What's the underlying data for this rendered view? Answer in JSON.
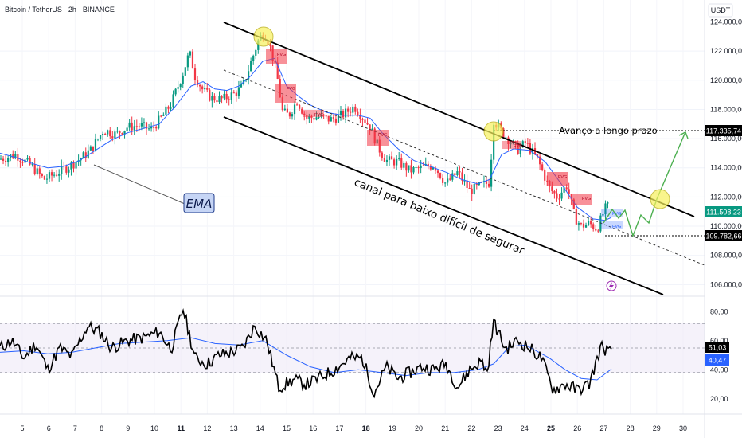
{
  "header": {
    "symbol_title": "Bitcoin / TetherUS · 2h · BINANCE",
    "currency": "USDT"
  },
  "colors": {
    "up": "#089981",
    "down": "#f23645",
    "ema": "#2962ff",
    "rsi_line": "#000000",
    "rsi_ma": "#2962ff",
    "channel": "#000000",
    "projection": "#4caf50",
    "fvg": "#f23645",
    "highlight": "#f7f15c",
    "ema_tag_bg": "#c6d5f5",
    "price_tag_green": "#089981"
  },
  "annotations": {
    "ema_label": "EMA",
    "channel_label": "canal para baixo difícil de segurar",
    "long_term_label": "Avanço a longo prazo",
    "fvg_label": "FVG"
  },
  "price_tags": {
    "target": "117.335,74",
    "current": "111.508,23",
    "support": "109.782,66"
  },
  "rsi_tags": {
    "rsi": "51,03",
    "rsi_ma": "40,47"
  },
  "chart_data": {
    "type": "candlestick",
    "title": "Bitcoin / TetherUS · 2h · BINANCE",
    "y_axis_ticks": [
      "124.000,00",
      "122.000,00",
      "120.000,00",
      "118.000,00",
      "116.000,00",
      "114.000,00",
      "112.000,00",
      "110.000,00",
      "108.000,00",
      "106.000,00"
    ],
    "ylim": [
      105200,
      125500
    ],
    "x_axis_labels": [
      "5",
      "6",
      "7",
      "8",
      "9",
      "10",
      "11",
      "12",
      "13",
      "14",
      "15",
      "16",
      "17",
      "18",
      "19",
      "20",
      "21",
      "22",
      "23",
      "24",
      "25",
      "26",
      "27",
      "28",
      "29",
      "30"
    ],
    "bold_dates": [
      "11",
      "18",
      "25"
    ],
    "close_path": [
      [
        0,
        114600
      ],
      [
        20,
        114900
      ],
      [
        40,
        114100
      ],
      [
        55,
        113200
      ],
      [
        70,
        113600
      ],
      [
        90,
        114200
      ],
      [
        105,
        114800
      ],
      [
        115,
        115300
      ],
      [
        130,
        116600
      ],
      [
        145,
        116300
      ],
      [
        160,
        116800
      ],
      [
        175,
        116900
      ],
      [
        190,
        116600
      ],
      [
        205,
        117600
      ],
      [
        215,
        118400
      ],
      [
        228,
        120200
      ],
      [
        238,
        121900
      ],
      [
        245,
        120300
      ],
      [
        255,
        119300
      ],
      [
        265,
        118800
      ],
      [
        280,
        118700
      ],
      [
        295,
        119100
      ],
      [
        305,
        119600
      ],
      [
        315,
        121200
      ],
      [
        325,
        122800
      ],
      [
        332,
        123300
      ],
      [
        340,
        122200
      ],
      [
        348,
        120300
      ],
      [
        355,
        117800
      ],
      [
        363,
        117600
      ],
      [
        373,
        118600
      ],
      [
        385,
        117400
      ],
      [
        400,
        117500
      ],
      [
        415,
        117300
      ],
      [
        430,
        117600
      ],
      [
        445,
        118200
      ],
      [
        455,
        117500
      ],
      [
        465,
        116800
      ],
      [
        475,
        115400
      ],
      [
        485,
        114500
      ],
      [
        500,
        114400
      ],
      [
        515,
        113800
      ],
      [
        530,
        114000
      ],
      [
        545,
        114200
      ],
      [
        560,
        112900
      ],
      [
        575,
        113700
      ],
      [
        590,
        112400
      ],
      [
        605,
        112800
      ],
      [
        615,
        113000
      ],
      [
        620,
        117300
      ],
      [
        628,
        116600
      ],
      [
        638,
        116000
      ],
      [
        650,
        115200
      ],
      [
        660,
        115700
      ],
      [
        675,
        114600
      ],
      [
        690,
        112600
      ],
      [
        700,
        112000
      ],
      [
        712,
        112800
      ],
      [
        722,
        110600
      ],
      [
        730,
        110000
      ],
      [
        740,
        110200
      ],
      [
        750,
        109800
      ],
      [
        760,
        111200
      ],
      [
        768,
        111500
      ]
    ],
    "ema_path": [
      [
        0,
        115000
      ],
      [
        20,
        114700
      ],
      [
        40,
        114300
      ],
      [
        60,
        114000
      ],
      [
        80,
        114100
      ],
      [
        100,
        114500
      ],
      [
        120,
        115200
      ],
      [
        140,
        115900
      ],
      [
        160,
        116400
      ],
      [
        180,
        116700
      ],
      [
        200,
        117000
      ],
      [
        220,
        118200
      ],
      [
        240,
        119600
      ],
      [
        255,
        119900
      ],
      [
        270,
        119400
      ],
      [
        285,
        119300
      ],
      [
        300,
        119600
      ],
      [
        315,
        120300
      ],
      [
        330,
        121300
      ],
      [
        345,
        121500
      ],
      [
        360,
        119600
      ],
      [
        375,
        118900
      ],
      [
        390,
        118300
      ],
      [
        410,
        117800
      ],
      [
        430,
        117600
      ],
      [
        450,
        117600
      ],
      [
        465,
        117400
      ],
      [
        480,
        116400
      ],
      [
        500,
        115300
      ],
      [
        520,
        114500
      ],
      [
        540,
        114100
      ],
      [
        560,
        113700
      ],
      [
        580,
        113200
      ],
      [
        600,
        112900
      ],
      [
        615,
        113200
      ],
      [
        630,
        114900
      ],
      [
        645,
        115300
      ],
      [
        665,
        115200
      ],
      [
        685,
        114400
      ],
      [
        705,
        112900
      ],
      [
        725,
        111300
      ],
      [
        745,
        110500
      ],
      [
        760,
        110400
      ],
      [
        768,
        110600
      ]
    ],
    "rsi": {
      "y_axis_ticks": [
        "80,00",
        "60,00",
        "40,00",
        "20,00"
      ],
      "ylim": [
        10,
        90
      ],
      "band": [
        30,
        70
      ],
      "mid": 50,
      "rsi_path": [
        [
          0,
          55
        ],
        [
          15,
          60
        ],
        [
          30,
          48
        ],
        [
          45,
          58
        ],
        [
          60,
          40
        ],
        [
          75,
          55
        ],
        [
          90,
          49
        ],
        [
          110,
          70
        ],
        [
          125,
          66
        ],
        [
          140,
          55
        ],
        [
          160,
          60
        ],
        [
          180,
          62
        ],
        [
          200,
          66
        ],
        [
          215,
          54
        ],
        [
          230,
          82
        ],
        [
          245,
          48
        ],
        [
          260,
          44
        ],
        [
          275,
          50
        ],
        [
          290,
          52
        ],
        [
          305,
          55
        ],
        [
          320,
          70
        ],
        [
          335,
          60
        ],
        [
          350,
          28
        ],
        [
          370,
          33
        ],
        [
          385,
          30
        ],
        [
          400,
          34
        ],
        [
          420,
          40
        ],
        [
          440,
          48
        ],
        [
          455,
          48
        ],
        [
          470,
          24
        ],
        [
          485,
          42
        ],
        [
          500,
          34
        ],
        [
          515,
          38
        ],
        [
          530,
          42
        ],
        [
          545,
          40
        ],
        [
          560,
          44
        ],
        [
          575,
          28
        ],
        [
          590,
          40
        ],
        [
          605,
          46
        ],
        [
          612,
          38
        ],
        [
          620,
          73
        ],
        [
          635,
          54
        ],
        [
          650,
          60
        ],
        [
          665,
          55
        ],
        [
          680,
          48
        ],
        [
          695,
          26
        ],
        [
          710,
          30
        ],
        [
          725,
          26
        ],
        [
          740,
          30
        ],
        [
          755,
          56
        ],
        [
          768,
          51
        ]
      ],
      "ma_path": [
        [
          0,
          52
        ],
        [
          30,
          53
        ],
        [
          60,
          51
        ],
        [
          90,
          52
        ],
        [
          120,
          55
        ],
        [
          150,
          58
        ],
        [
          180,
          59
        ],
        [
          210,
          60
        ],
        [
          240,
          62
        ],
        [
          270,
          58
        ],
        [
          300,
          57
        ],
        [
          330,
          60
        ],
        [
          360,
          50
        ],
        [
          390,
          42
        ],
        [
          420,
          38
        ],
        [
          450,
          40
        ],
        [
          480,
          38
        ],
        [
          510,
          36
        ],
        [
          540,
          38
        ],
        [
          570,
          38
        ],
        [
          600,
          40
        ],
        [
          620,
          44
        ],
        [
          640,
          56
        ],
        [
          660,
          57
        ],
        [
          690,
          48
        ],
        [
          710,
          40
        ],
        [
          730,
          34
        ],
        [
          750,
          33
        ],
        [
          768,
          40.47
        ]
      ]
    }
  }
}
